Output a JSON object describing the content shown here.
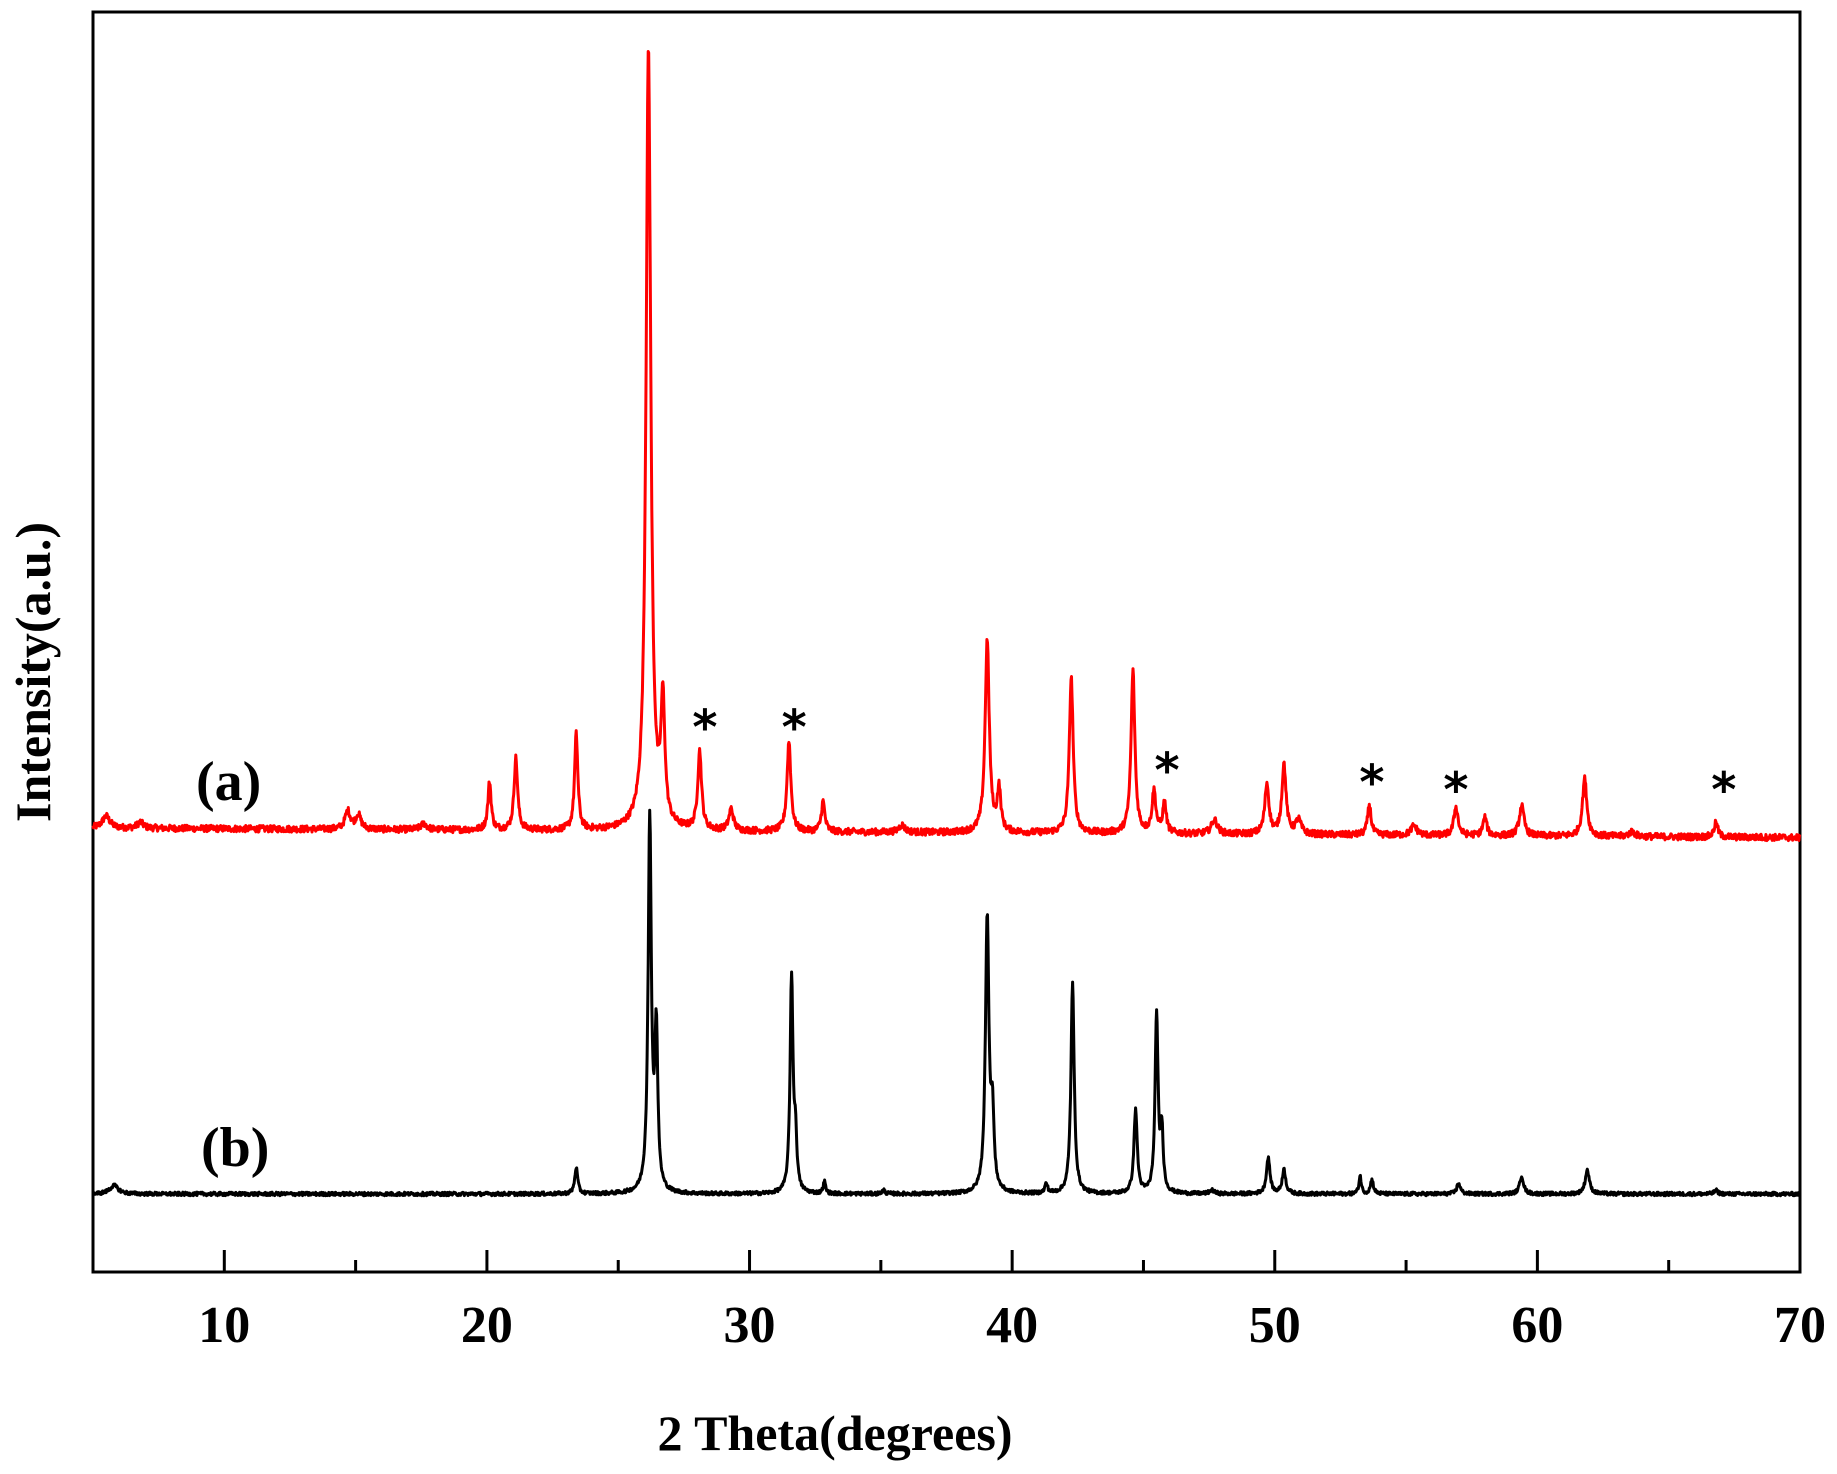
{
  "chart_data": {
    "type": "line",
    "xlabel": "2 Theta(degrees)",
    "ylabel": "Intensity(a.u.)",
    "xlim": [
      5,
      70
    ],
    "ylim": [
      0,
      105
    ],
    "x_ticks": [
      10,
      20,
      30,
      40,
      50,
      60,
      70
    ],
    "y_ticks_shown": false,
    "grid": false,
    "legend": "none",
    "series": [
      {
        "name": "(a)",
        "color": "#ff0000",
        "baseline": 37,
        "baseline_end": 36.2,
        "peaks": [
          [
            5.5,
            1.0,
            0.25
          ],
          [
            6.8,
            0.5,
            0.2
          ],
          [
            14.7,
            1.5,
            0.18
          ],
          [
            15.1,
            1.2,
            0.18
          ],
          [
            17.6,
            0.5,
            0.2
          ],
          [
            20.1,
            4.0,
            0.11
          ],
          [
            21.1,
            6.0,
            0.12
          ],
          [
            23.4,
            8.0,
            0.11
          ],
          [
            26.15,
            65.0,
            0.16
          ],
          [
            26.7,
            10.0,
            0.13
          ],
          [
            28.1,
            6.5,
            0.13
          ],
          [
            29.3,
            1.8,
            0.15
          ],
          [
            31.5,
            7.5,
            0.13
          ],
          [
            32.8,
            2.5,
            0.12
          ],
          [
            35.8,
            0.6,
            0.2
          ],
          [
            39.05,
            16.0,
            0.14
          ],
          [
            39.5,
            3.5,
            0.12
          ],
          [
            42.25,
            13.0,
            0.13
          ],
          [
            44.6,
            13.5,
            0.13
          ],
          [
            45.4,
            3.5,
            0.13
          ],
          [
            45.8,
            2.5,
            0.12
          ],
          [
            47.7,
            1.2,
            0.2
          ],
          [
            49.7,
            4.2,
            0.14
          ],
          [
            50.35,
            5.8,
            0.14
          ],
          [
            50.9,
            1.2,
            0.18
          ],
          [
            53.6,
            2.5,
            0.12
          ],
          [
            55.3,
            0.8,
            0.2
          ],
          [
            56.9,
            2.4,
            0.14
          ],
          [
            58.0,
            1.5,
            0.13
          ],
          [
            59.4,
            2.5,
            0.16
          ],
          [
            61.8,
            4.8,
            0.15
          ],
          [
            63.6,
            0.4,
            0.2
          ],
          [
            66.8,
            1.2,
            0.13
          ]
        ]
      },
      {
        "name": "(b)",
        "color": "#000000",
        "baseline": 6.5,
        "baseline_end": 6.5,
        "peaks": [
          [
            5.8,
            0.7,
            0.3
          ],
          [
            23.4,
            2.2,
            0.1
          ],
          [
            26.2,
            31.0,
            0.11
          ],
          [
            26.45,
            13.0,
            0.1
          ],
          [
            31.6,
            18.0,
            0.1
          ],
          [
            31.75,
            4.0,
            0.09
          ],
          [
            32.85,
            1.0,
            0.08
          ],
          [
            35.1,
            0.3,
            0.1
          ],
          [
            39.05,
            23.0,
            0.12
          ],
          [
            39.25,
            6.0,
            0.1
          ],
          [
            41.3,
            0.8,
            0.09
          ],
          [
            42.3,
            17.5,
            0.11
          ],
          [
            44.7,
            7.0,
            0.11
          ],
          [
            45.5,
            15.0,
            0.1
          ],
          [
            45.7,
            5.0,
            0.09
          ],
          [
            47.6,
            0.3,
            0.15
          ],
          [
            49.75,
            3.0,
            0.12
          ],
          [
            50.35,
            2.0,
            0.12
          ],
          [
            53.25,
            1.5,
            0.08
          ],
          [
            53.7,
            1.2,
            0.1
          ],
          [
            57.0,
            0.9,
            0.12
          ],
          [
            59.4,
            1.5,
            0.13
          ],
          [
            61.9,
            2.0,
            0.14
          ],
          [
            66.8,
            0.3,
            0.12
          ]
        ]
      }
    ],
    "annotations": [
      {
        "text": "*",
        "x": 28.3,
        "y": 44.0
      },
      {
        "text": "*",
        "x": 31.7,
        "y": 44.0
      },
      {
        "text": "*",
        "x": 45.9,
        "y": 40.4
      },
      {
        "text": "*",
        "x": 53.7,
        "y": 39.4
      },
      {
        "text": "*",
        "x": 56.9,
        "y": 38.8
      },
      {
        "text": "*",
        "x": 67.1,
        "y": 38.8
      }
    ]
  }
}
